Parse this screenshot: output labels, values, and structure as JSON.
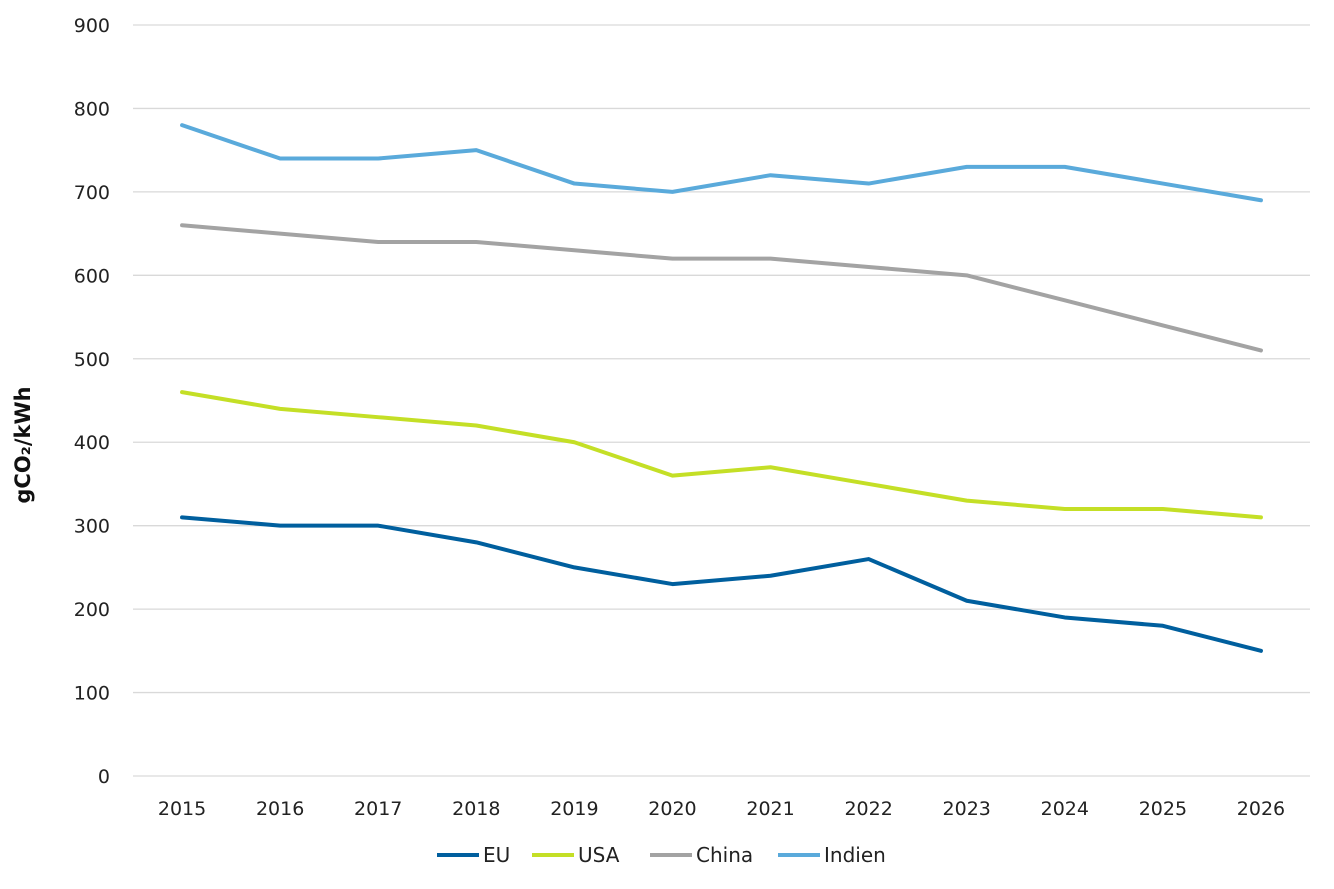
{
  "chart_data": {
    "type": "line",
    "title": "",
    "xlabel": "",
    "ylabel": "gCO₂/kWh",
    "ylim": [
      0,
      900
    ],
    "yticks": [
      0,
      100,
      200,
      300,
      400,
      500,
      600,
      700,
      800,
      900
    ],
    "grid": true,
    "legend_placement": "bottom",
    "categories": [
      "2015",
      "2016",
      "2017",
      "2018",
      "2019",
      "2020",
      "2021",
      "2022",
      "2023",
      "2024",
      "2025",
      "2026"
    ],
    "series": [
      {
        "name": "EU",
        "color": "#005f9e",
        "values": [
          310,
          300,
          300,
          280,
          250,
          230,
          240,
          260,
          210,
          190,
          180,
          150
        ]
      },
      {
        "name": "USA",
        "color": "#c4df26",
        "values": [
          460,
          440,
          430,
          420,
          400,
          360,
          370,
          350,
          330,
          320,
          320,
          310
        ]
      },
      {
        "name": "China",
        "color": "#a3a3a3",
        "values": [
          660,
          650,
          640,
          640,
          630,
          620,
          620,
          610,
          600,
          570,
          540,
          510
        ]
      },
      {
        "name": "Indien",
        "color": "#5aaadb",
        "values": [
          780,
          740,
          740,
          750,
          710,
          700,
          720,
          710,
          730,
          730,
          710,
          690
        ]
      }
    ]
  }
}
